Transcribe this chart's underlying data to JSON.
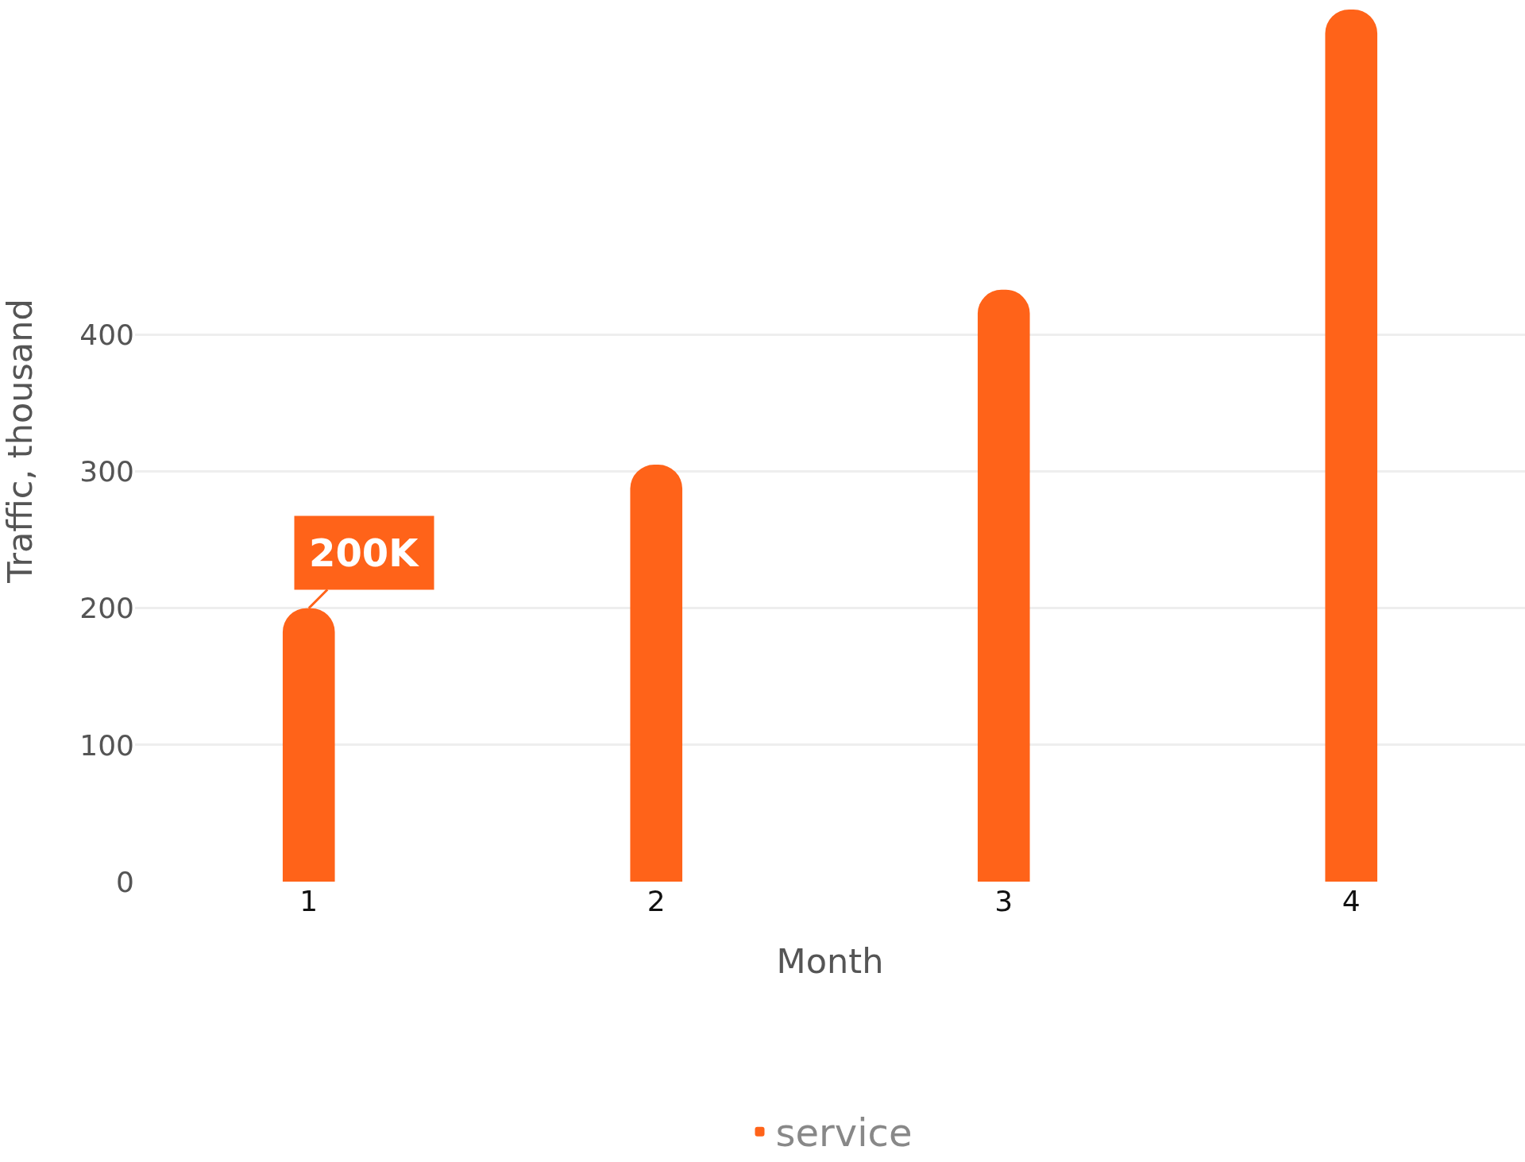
{
  "chart_data": {
    "type": "bar",
    "xlabel": "Month",
    "ylabel": "Traffic, thousand",
    "categories": [
      "1",
      "2",
      "3",
      "4"
    ],
    "series": [
      {
        "name": "service",
        "color": "#ff6319",
        "values": [
          200,
          305,
          433,
          638
        ]
      }
    ],
    "ylim": [
      0,
      645
    ],
    "yticks": [
      0,
      100,
      200,
      300,
      400
    ],
    "grid": "y",
    "legend": "bottom",
    "annotations": [
      {
        "text": "200K",
        "x": "1",
        "y": 200
      }
    ]
  }
}
